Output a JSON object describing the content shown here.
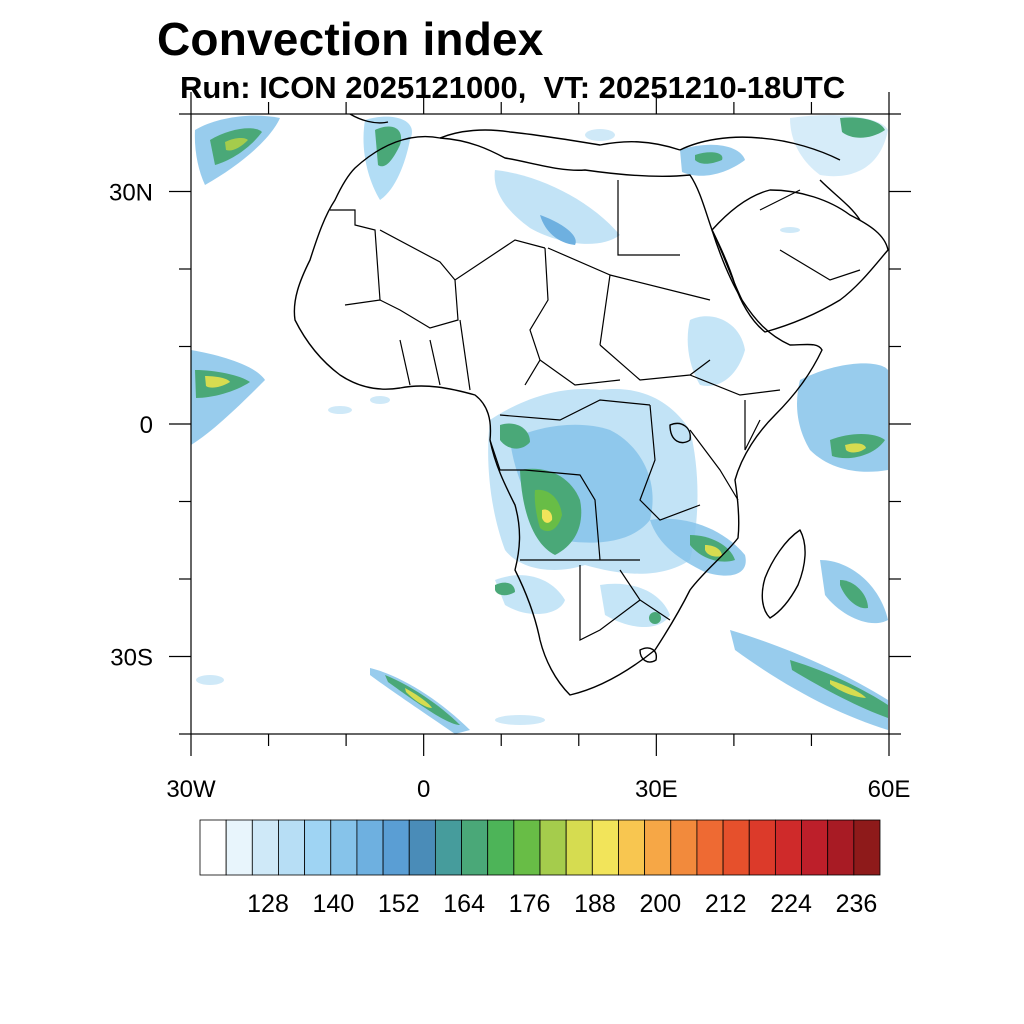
{
  "title": "Convection index",
  "subtitle": "Run: ICON 2025121000,  VT: 20251210-18UTC",
  "map": {
    "lon_range": [
      -30,
      60
    ],
    "lat_range": [
      -40,
      40
    ],
    "lon_ticks": [
      {
        "value": -30,
        "label": "30W"
      },
      {
        "value": 0,
        "label": "0"
      },
      {
        "value": 30,
        "label": "30E"
      },
      {
        "value": 60,
        "label": "60E"
      }
    ],
    "lat_ticks": [
      {
        "value": 30,
        "label": "30N"
      },
      {
        "value": 0,
        "label": "0"
      },
      {
        "value": -30,
        "label": "30S"
      }
    ],
    "minor_lon_step": 10,
    "minor_lat_step": 10
  },
  "colorbar": {
    "colors": [
      "#ffffff",
      "#e8f5fc",
      "#cfe9f8",
      "#b7def5",
      "#9fd4f3",
      "#86c3ea",
      "#6eb0e0",
      "#5a9ed4",
      "#4a8cb8",
      "#469c9c",
      "#4aa878",
      "#4db458",
      "#68bd46",
      "#a5cc4c",
      "#d6dc50",
      "#f2e45a",
      "#f8c650",
      "#f6a746",
      "#f28a3c",
      "#ee6a33",
      "#e6502c",
      "#dc3a2a",
      "#cf2a2a",
      "#bd1f2a",
      "#a81b24",
      "#8e1a1a"
    ],
    "labels": [
      "128",
      "140",
      "152",
      "164",
      "176",
      "188",
      "200",
      "212",
      "224",
      "236"
    ]
  }
}
